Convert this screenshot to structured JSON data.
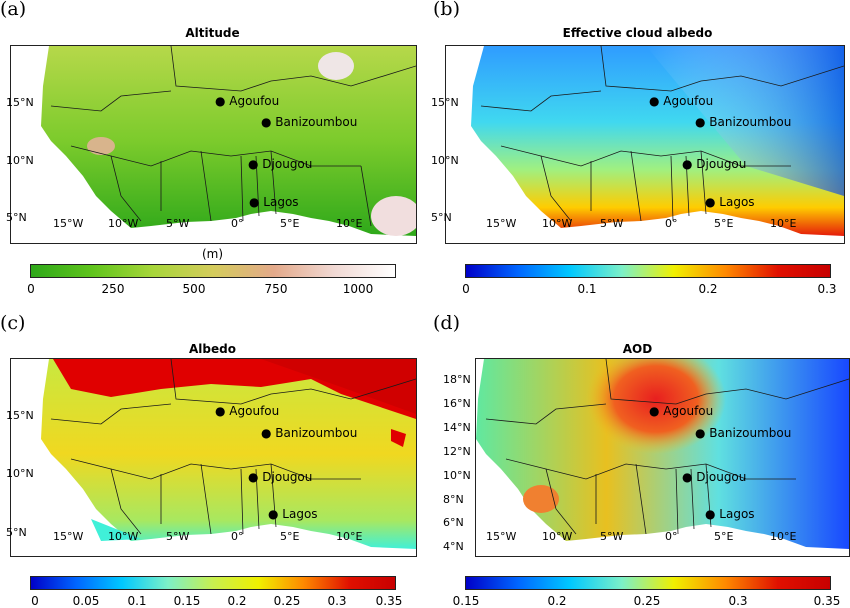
{
  "panels": [
    {
      "label": "(a)",
      "title": "Altitude",
      "unit": "(m)",
      "lat_ticks": [
        "15°N",
        "10°N",
        "5°N"
      ],
      "lon_ticks": [
        "15°W",
        "10°W",
        "5°W",
        "0°",
        "5°E",
        "10°E"
      ],
      "colorbar_ticks": [
        "0",
        "250",
        "500",
        "750",
        "1000"
      ],
      "colorbar_colors": [
        "#2ea81a",
        "#5fc41c",
        "#a7d63a",
        "#d4cc5c",
        "#e3a98a",
        "#f1d9d4",
        "#ffffff"
      ]
    },
    {
      "label": "(b)",
      "title": "Effective cloud albedo",
      "lat_ticks": [
        "15°N",
        "10°N",
        "5°N"
      ],
      "lon_ticks": [
        "15°W",
        "10°W",
        "5°W",
        "0°",
        "5°E",
        "10°E"
      ],
      "colorbar_ticks": [
        "0",
        "0.1",
        "0.2",
        "0.3"
      ],
      "colorbar_colors": [
        "#0000c8",
        "#0066ff",
        "#00c8ff",
        "#7cf0c8",
        "#f0f000",
        "#ff8800",
        "#e01000",
        "#c80000"
      ]
    },
    {
      "label": "(c)",
      "title": "Albedo",
      "lat_ticks": [
        "15°N",
        "10°N",
        "5°N"
      ],
      "lon_ticks": [
        "15°W",
        "10°W",
        "5°W",
        "0°",
        "5°E",
        "10°E"
      ],
      "colorbar_ticks": [
        "0",
        "0.05",
        "0.1",
        "0.15",
        "0.2",
        "0.25",
        "0.3",
        "0.35"
      ],
      "colorbar_colors": [
        "#0000c8",
        "#0066ff",
        "#00c8ff",
        "#7cf0c8",
        "#c8f050",
        "#f0f000",
        "#ff8800",
        "#e01000",
        "#c80000"
      ]
    },
    {
      "label": "(d)",
      "title": "AOD",
      "lat_ticks": [
        "18°N",
        "16°N",
        "14°N",
        "12°N",
        "10°N",
        "8°N",
        "6°N",
        "4°N"
      ],
      "lon_ticks": [
        "15°W",
        "10°W",
        "5°W",
        "0°",
        "5°E",
        "10°E"
      ],
      "colorbar_ticks": [
        "0.15",
        "0.2",
        "0.25",
        "0.3",
        "0.35"
      ],
      "colorbar_colors": [
        "#0000c8",
        "#0066ff",
        "#00c8ff",
        "#7cf0c8",
        "#f0f000",
        "#ff8800",
        "#e01000",
        "#c80000"
      ]
    }
  ],
  "cities": [
    "Agoufou",
    "Banizoumbou",
    "Djougou",
    "Lagos"
  ],
  "colors": {
    "ocean": "#ffffff",
    "border": "#1a1a1a",
    "alt_low": "#3fb31f",
    "alt_mid": "#b5d83e",
    "alt_high": "#f0d8d8",
    "cloud_low": "#2f9cff",
    "cloud_mid": "#7ff0c0",
    "cloud_high": "#e51b0a",
    "alb_low": "#00ffd0",
    "alb_mid": "#d4e830",
    "alb_high": "#e00000",
    "aod_low": "#1040ff",
    "aod_mid": "#40e8e0",
    "aod_high": "#e81f1f"
  }
}
